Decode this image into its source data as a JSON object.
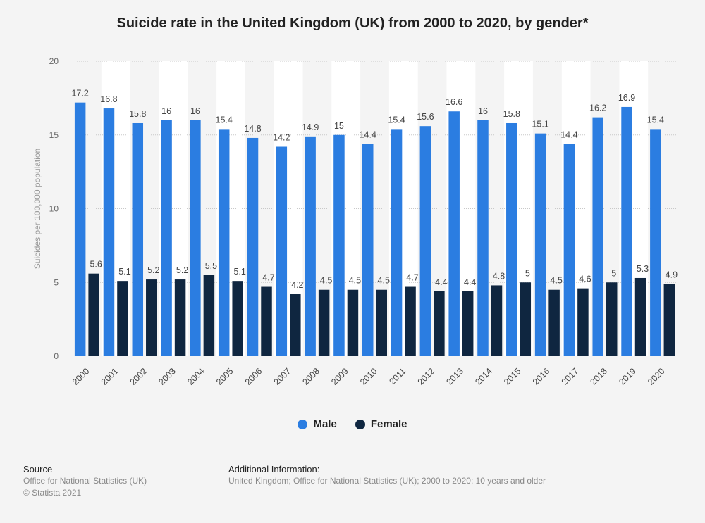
{
  "chart_data": {
    "type": "bar",
    "title": "Suicide rate in the United Kingdom (UK) from 2000 to 2020, by gender*",
    "xlabel": "",
    "ylabel": "Suicides per 100,000 population",
    "ylim": [
      0,
      20
    ],
    "yticks": [
      "0",
      "5",
      "10",
      "15",
      "20"
    ],
    "grid": true,
    "legend_position": "bottom",
    "categories": [
      "2000",
      "2001",
      "2002",
      "2003",
      "2004",
      "2005",
      "2006",
      "2007",
      "2008",
      "2009",
      "2010",
      "2011",
      "2012",
      "2013",
      "2014",
      "2015",
      "2016",
      "2017",
      "2018",
      "2019",
      "2020"
    ],
    "series": [
      {
        "name": "Male",
        "color": "#2b7de1",
        "values": [
          17.2,
          16.8,
          15.8,
          16,
          16,
          15.4,
          14.8,
          14.2,
          14.9,
          15,
          14.4,
          15.4,
          15.6,
          16.6,
          16,
          15.8,
          15.1,
          14.4,
          16.2,
          16.9,
          15.4
        ]
      },
      {
        "name": "Female",
        "color": "#0f2640",
        "values": [
          5.6,
          5.1,
          5.2,
          5.2,
          5.5,
          5.1,
          4.7,
          4.2,
          4.5,
          4.5,
          4.5,
          4.7,
          4.4,
          4.4,
          4.8,
          5,
          4.5,
          4.6,
          5,
          5.3,
          4.9
        ]
      }
    ]
  },
  "footer": {
    "source_heading": "Source",
    "source_line1": "Office for National Statistics (UK)",
    "source_line2": "© Statista 2021",
    "info_heading": "Additional Information:",
    "info_text": "United Kingdom; Office for National Statistics (UK); 2000 to 2020; 10 years and older"
  }
}
